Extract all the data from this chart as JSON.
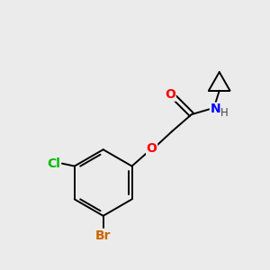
{
  "background_color": "#ebebeb",
  "atom_colors": {
    "O": "#ff0000",
    "N": "#0000ff",
    "Cl": "#00bb00",
    "Br": "#cc6600",
    "C": "#000000",
    "H": "#444444"
  },
  "bond_color": "#000000",
  "bond_lw": 1.4,
  "font_size_atoms": 10,
  "font_size_small": 8.5
}
